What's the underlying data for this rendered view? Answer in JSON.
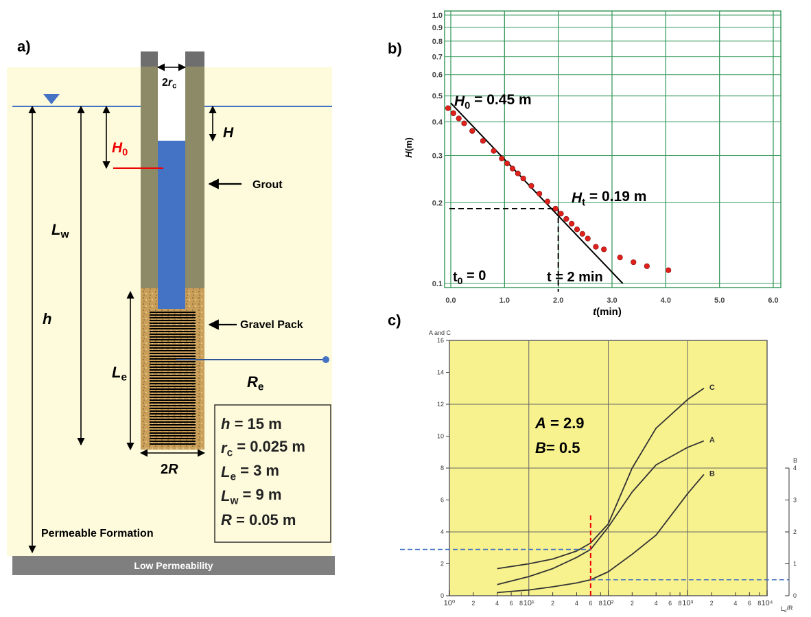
{
  "diagram": {
    "panel_labels": [
      "a)",
      "b)",
      "c)"
    ],
    "labels": {
      "casing": {
        "prefix": "2",
        "sym": "r",
        "sub": "c"
      },
      "drawdown": "H",
      "initial": {
        "sym": "H",
        "sub": "0"
      },
      "grout": "Grout",
      "well_depth": {
        "sym": "L",
        "sub": "w"
      },
      "thickness": "h",
      "gravel": "Gravel Pack",
      "screen": {
        "sym": "L",
        "sub": "e"
      },
      "radius": {
        "sym": "R",
        "sub": "e"
      },
      "diameter": {
        "prefix": "2",
        "sym": "R"
      },
      "formation": "Permeable Formation",
      "base": "Low Permeability"
    },
    "parameters": [
      {
        "sym": "h",
        "rest": " = 15 m"
      },
      {
        "sym": "r",
        "sub": "c",
        "rest": " = 0.025 m"
      },
      {
        "sym": "L",
        "sub": "e",
        "rest": " = 3 m"
      },
      {
        "sym": "L",
        "sub": "w",
        "rest": " = 9 m"
      },
      {
        "sym": "R",
        "rest": " = 0.05 m"
      }
    ]
  },
  "chart_data": [
    {
      "type": "scatter",
      "x_label": {
        "sym": "t",
        "rest": "(min)"
      },
      "y_label": {
        "sym": "H",
        "rest": "(m)"
      },
      "log_y": true,
      "grid": true,
      "grid_color": "#3c9a5f",
      "color": "#e0201b",
      "x": [
        0,
        0.1,
        0.2,
        0.3,
        0.45,
        0.65,
        0.85,
        1.0,
        1.1,
        1.2,
        1.3,
        1.4,
        1.55,
        1.7,
        1.85,
        2.0,
        2.1,
        2.2,
        2.3,
        2.4,
        2.5,
        2.6,
        2.75,
        2.9,
        3.2,
        3.45,
        3.7,
        4.1
      ],
      "values": [
        0.45,
        0.431,
        0.412,
        0.395,
        0.37,
        0.34,
        0.312,
        0.292,
        0.28,
        0.268,
        0.257,
        0.246,
        0.231,
        0.216,
        0.202,
        0.19,
        0.182,
        0.174,
        0.167,
        0.159,
        0.153,
        0.147,
        0.137,
        0.134,
        0.125,
        0.12,
        0.116,
        0.112
      ],
      "fit_line": {
        "x": [
          0,
          3.2
        ],
        "values": [
          0.47,
          0.1
        ]
      },
      "guide": {
        "x": 2,
        "y": 0.19
      },
      "annotations": [
        {
          "sym": "H",
          "sub": "0",
          "rest": " = 0.45 m"
        },
        {
          "sym": "H",
          "sub": "t",
          "rest": " = 0.19 m"
        },
        {
          "prefix": "t",
          "sub": "0",
          "rest": " = 0"
        },
        "t = 2 min"
      ],
      "xlim": [
        0,
        6
      ],
      "ylim": [
        0.1,
        1
      ],
      "xticks": [
        {
          "value": 0,
          "label": "0.0"
        },
        {
          "value": 1,
          "label": "1.0"
        },
        {
          "value": 2,
          "label": "2.0"
        },
        {
          "value": 3,
          "label": "3.0"
        },
        {
          "value": 4,
          "label": "4.0"
        },
        {
          "value": 5,
          "label": "5.0"
        },
        {
          "value": 6,
          "label": "6.0"
        }
      ],
      "yticks": [
        0.1,
        0.2,
        0.3,
        0.4,
        0.5,
        0.6,
        0.7,
        0.8,
        0.9,
        {
          "value": 1,
          "label": "1.0"
        }
      ]
    },
    {
      "type": "line",
      "y_label": "A and C",
      "y2_label": "B",
      "x_label": {
        "sym": "L",
        "sub": "e",
        "rest": "/R"
      },
      "log_x": true,
      "grid": true,
      "background": "#f7f18e",
      "x": [
        4,
        10,
        20,
        40,
        60,
        100,
        200,
        400,
        1000,
        1600
      ],
      "series": [
        {
          "name": "C",
          "color": "#333333",
          "values": [
            1.7,
            2.0,
            2.3,
            2.8,
            3.3,
            4.5,
            8.0,
            10.5,
            12.3,
            13.0
          ]
        },
        {
          "name": "A",
          "color": "#333333",
          "values": [
            0.7,
            1.2,
            1.7,
            2.4,
            2.9,
            4.3,
            6.5,
            8.2,
            9.3,
            9.7
          ]
        },
        {
          "name": "B",
          "color": "#333333",
          "axis": "y2",
          "values": [
            0.1,
            0.18,
            0.28,
            0.4,
            0.5,
            0.75,
            1.3,
            1.9,
            3.2,
            3.8
          ]
        }
      ],
      "reference": {
        "x": 60,
        "A": 2.9,
        "B": 0.5
      },
      "annotations": [
        {
          "sym": "A",
          "rest": " = 2.9"
        },
        {
          "sym": "B",
          "rest": "= 0.5"
        }
      ],
      "xlim": [
        1,
        10000
      ],
      "ylim": [
        0,
        16
      ],
      "y2lim": [
        0,
        8
      ],
      "xticks": [
        {
          "value": 1,
          "label": "10⁰"
        },
        2,
        4,
        6,
        8,
        {
          "value": 10,
          "label": "10¹"
        },
        {
          "value": 20,
          "label": "2"
        },
        {
          "value": 40,
          "label": "4"
        },
        {
          "value": 60,
          "label": "6"
        },
        {
          "value": 80,
          "label": "8"
        },
        {
          "value": 100,
          "label": "10²"
        },
        {
          "value": 200,
          "label": "2"
        },
        {
          "value": 400,
          "label": "4"
        },
        {
          "value": 600,
          "label": "6"
        },
        {
          "value": 800,
          "label": "8"
        },
        {
          "value": 1000,
          "label": "10³"
        },
        {
          "value": 2000,
          "label": "2"
        },
        {
          "value": 4000,
          "label": "4"
        },
        {
          "value": 6000,
          "label": "6"
        },
        {
          "value": 8000,
          "label": "8"
        },
        {
          "value": 10000,
          "label": "10⁴"
        }
      ],
      "yticks": [
        0,
        2,
        4,
        6,
        8,
        10,
        12,
        14,
        16
      ],
      "y2ticks": [
        0,
        1,
        2,
        3,
        4
      ]
    }
  ]
}
